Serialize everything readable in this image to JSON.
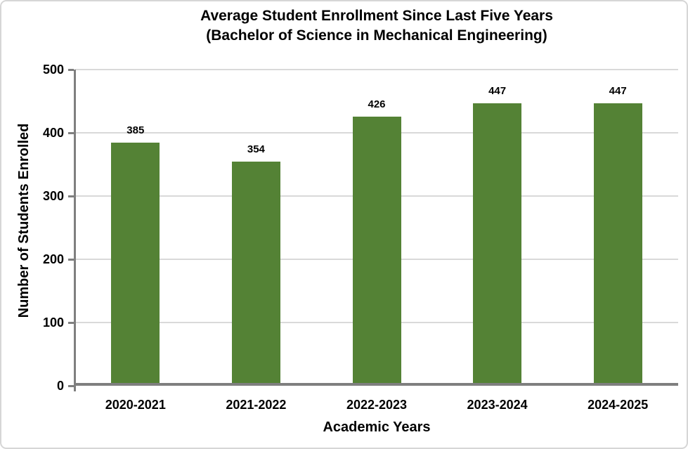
{
  "title": {
    "line1": "Average Student Enrollment Since Last Five Years",
    "line2": "(Bachelor of Science in Mechanical Engineering)"
  },
  "chart_data": {
    "type": "bar",
    "title": "Average Student Enrollment Since Last Five Years (Bachelor of Science in Mechanical Engineering)",
    "categories": [
      "2020-2021",
      "2021-2022",
      "2022-2023",
      "2023-2024",
      "2024-2025"
    ],
    "values": [
      385,
      354,
      426,
      447,
      447
    ],
    "data_labels": [
      "385",
      "354",
      "426",
      "447",
      "447"
    ],
    "xlabel": "Academic Years",
    "ylabel": "Number of Students Enrolled",
    "ylim": [
      0,
      500
    ],
    "yticks": [
      0,
      100,
      200,
      300,
      400,
      500
    ],
    "grid": "horizontal-gridlines",
    "legend": "none",
    "colors": {
      "bar": "#548235",
      "gridline": "#d9d9d9",
      "axis": "#7f7f7f",
      "text": "#000000",
      "chart_border": "#d6d6d6",
      "background": "#ffffff"
    }
  }
}
